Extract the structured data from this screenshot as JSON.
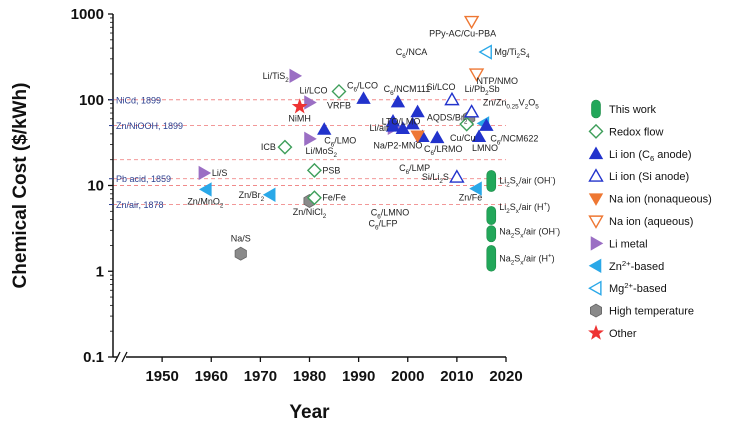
{
  "chart_data": {
    "type": "scatter",
    "xlabel": "Year",
    "ylabel": "Chemical Cost ($/kWh)",
    "xlim": [
      1940,
      2020
    ],
    "ylim": [
      0.1,
      1000
    ],
    "yscale": "log",
    "axis_break": "x-axis between left edge and 1950",
    "x_ticks": [
      {
        "value": 1950,
        "label": "1950"
      },
      {
        "value": 1960,
        "label": "1960"
      },
      {
        "value": 1970,
        "label": "1970"
      },
      {
        "value": 1980,
        "label": "1980"
      },
      {
        "value": 1990,
        "label": "1990"
      },
      {
        "value": 2000,
        "label": "2000"
      },
      {
        "value": 2010,
        "label": "2010"
      },
      {
        "value": 2020,
        "label": "2020"
      }
    ],
    "y_ticks": [
      {
        "value": 0.1,
        "label": "0.1"
      },
      {
        "value": 1,
        "label": "1"
      },
      {
        "value": 10,
        "label": "10"
      },
      {
        "value": 100,
        "label": "100"
      },
      {
        "value": 1000,
        "label": "1000"
      }
    ],
    "reference_lines": [
      {
        "y": 100,
        "label": "NiCd, 1899"
      },
      {
        "y": 50,
        "label": "Zn/NiOOH, 1899"
      },
      {
        "y": 20,
        "label": ""
      },
      {
        "y": 12,
        "label": "Pb acid, 1859"
      },
      {
        "y": 10,
        "label": ""
      },
      {
        "y": 6,
        "label": "Zn/air, 1878"
      }
    ],
    "legend": [
      {
        "key": "this_work",
        "label": "This work",
        "marker": "pill",
        "color": "#22a75a"
      },
      {
        "key": "redox",
        "label": "Redox flow",
        "marker": "diamond",
        "color": "#3e9e5a"
      },
      {
        "key": "li_c6",
        "label": "Li ion (C6 anode)",
        "marker": "triangle-up",
        "color": "#2233cc",
        "filled": true
      },
      {
        "key": "li_si",
        "label": "Li ion (Si anode)",
        "marker": "triangle-up",
        "color": "#2233cc",
        "filled": false
      },
      {
        "key": "na_nonaq",
        "label": "Na ion (nonaqueous)",
        "marker": "triangle-down",
        "color": "#ee7733",
        "filled": true
      },
      {
        "key": "na_aq",
        "label": "Na ion (aqueous)",
        "marker": "triangle-down",
        "color": "#ee7733",
        "filled": false
      },
      {
        "key": "li_metal",
        "label": "Li metal",
        "marker": "triangle-right",
        "color": "#9b6fc4",
        "filled": true
      },
      {
        "key": "zn",
        "label": "Zn2+-based",
        "marker": "triangle-left",
        "color": "#2aa8e8",
        "filled": true
      },
      {
        "key": "mg",
        "label": "Mg2+-based",
        "marker": "triangle-left",
        "color": "#2aa8e8",
        "filled": false
      },
      {
        "key": "hightemp",
        "label": "High temperature",
        "marker": "hexagon",
        "color": "#888888",
        "filled": true
      },
      {
        "key": "other",
        "label": "Other",
        "marker": "star",
        "color": "#ee3333",
        "filled": true
      }
    ],
    "points": [
      {
        "name": "Na/S",
        "category": "hightemp",
        "x": 1966,
        "y": 1.6
      },
      {
        "name": "Zn/NiCl2",
        "category": "hightemp",
        "x": 1980,
        "y": 6.6
      },
      {
        "name": "AQDS/Br2",
        "category": "hightemp",
        "x": 2012.5,
        "y": 62
      },
      {
        "name": "Zn/MnO2",
        "category": "zn",
        "x": 1959,
        "y": 9
      },
      {
        "name": "Zn/Br2",
        "category": "zn",
        "x": 1972,
        "y": 7.8
      },
      {
        "name": "Zn/Fe",
        "category": "zn",
        "x": 2014,
        "y": 9.2
      },
      {
        "name": "Zn/Zn0.25V2O5",
        "category": "zn",
        "x": 2015.5,
        "y": 53
      },
      {
        "name": "Mg/Ti2S4",
        "category": "mg",
        "x": 2016,
        "y": 360
      },
      {
        "name": "Li/S",
        "category": "li_metal",
        "x": 1958.5,
        "y": 14
      },
      {
        "name": "Li/TiS2",
        "category": "li_metal",
        "x": 1977,
        "y": 190
      },
      {
        "name": "Li/LCO",
        "category": "li_metal",
        "x": 1980,
        "y": 93
      },
      {
        "name": "Li/MoS2",
        "category": "li_metal",
        "x": 1980,
        "y": 35
      },
      {
        "name": "Li/air",
        "category": "li_metal",
        "x": 1997,
        "y": 47
      },
      {
        "name": "NiMH",
        "category": "other",
        "x": 1978,
        "y": 83
      },
      {
        "name": "ICB",
        "category": "redox",
        "x": 1975,
        "y": 28
      },
      {
        "name": "PSB",
        "category": "redox",
        "x": 1981,
        "y": 15
      },
      {
        "name": "VRFB",
        "category": "redox",
        "x": 1986,
        "y": 125
      },
      {
        "name": "Fe/Fe",
        "category": "redox",
        "x": 1981,
        "y": 7.2
      },
      {
        "name": "Cu/Cu",
        "category": "redox",
        "x": 2012,
        "y": 52
      },
      {
        "name": "C6/LMO",
        "category": "li_c6",
        "x": 1983,
        "y": 45
      },
      {
        "name": "C6/LCO",
        "category": "li_c6",
        "x": 1991,
        "y": 103
      },
      {
        "name": "C6/NCM111",
        "category": "li_c6",
        "x": 1998,
        "y": 94
      },
      {
        "name": "LTO/LMO",
        "category": "li_c6",
        "x": 1997,
        "y": 56
      },
      {
        "name": "C6/NCA",
        "category": "li_c6",
        "x": 2002,
        "y": 72
      },
      {
        "name": "Na/P2-MNO",
        "category": "li_c6",
        "x": 1999,
        "y": 46
      },
      {
        "name": "C6/LMP",
        "category": "li_c6",
        "x": 2001,
        "y": 52
      },
      {
        "name": "C6/LFP",
        "category": "li_c6",
        "x": 1997,
        "y": 49
      },
      {
        "name": "C6/LMNO",
        "category": "li_c6",
        "x": 2003,
        "y": 37
      },
      {
        "name": "C6/LRMO",
        "category": "li_c6",
        "x": 2006,
        "y": 36
      },
      {
        "name": "LMNO",
        "category": "li_c6",
        "x": 2014.5,
        "y": 37
      },
      {
        "name": "C6/NCM622",
        "category": "li_c6",
        "x": 2016,
        "y": 50
      },
      {
        "name": "Si/LCO",
        "category": "li_si",
        "x": 2009,
        "y": 100
      },
      {
        "name": "Si/Li2S",
        "category": "li_si",
        "x": 2010,
        "y": 12.5
      },
      {
        "name": "Li/Pb2Sb",
        "category": "li_si",
        "x": 2013,
        "y": 72
      },
      {
        "name": "C6/LMP",
        "category": "na_nonaq",
        "x": 2002,
        "y": 38
      },
      {
        "name": "PPy-AC/Cu-PBA",
        "category": "na_aq",
        "x": 2013,
        "y": 820
      },
      {
        "name": "NTP/NMO",
        "category": "na_aq",
        "x": 2014,
        "y": 200
      },
      {
        "name": "Li2Sx/air (OH-)",
        "category": "this_work",
        "x": 2017,
        "y": 11.5,
        "y_range": [
          8.5,
          15
        ]
      },
      {
        "name": "Li2Sx/air (H+)",
        "category": "this_work",
        "x": 2017,
        "y": 4.5,
        "y_range": [
          3.5,
          5.7
        ]
      },
      {
        "name": "Na2Sx/air (OH-)",
        "category": "this_work",
        "x": 2017,
        "y": 2.9,
        "y_range": [
          2.2,
          3.4
        ]
      },
      {
        "name": "Na2Sx/air (H+)",
        "category": "this_work",
        "x": 2017,
        "y": 1.4,
        "y_range": [
          1.0,
          2.0
        ]
      }
    ]
  },
  "labels": {
    "y_axis_title": "Chemical Cost ($/kWh)",
    "x_axis_title": "Year",
    "legend": {
      "this_work": "This work",
      "redox": "Redox flow",
      "li_c6": [
        "Li ion (C",
        "6",
        " anode)"
      ],
      "li_si": "Li ion (Si anode)",
      "na_nonaq": "Na ion (nonaqueous)",
      "na_aq": "Na ion (aqueous)",
      "li_metal": "Li metal",
      "zn": [
        "Zn",
        "2+",
        "-based"
      ],
      "mg": [
        "Mg",
        "2+",
        "-based"
      ],
      "hightemp": "High temperature",
      "other": "Other"
    },
    "ref": {
      "nicd": "NiCd, 1899",
      "znniooh": "Zn/NiOOH, 1899",
      "pbacid": "Pb acid, 1859",
      "znair": "Zn/air, 1878"
    },
    "points": {
      "na_s": "Na/S",
      "zn_nicl2": [
        "Zn/NiCl",
        "2"
      ],
      "zn_mno2": [
        "Zn/MnO",
        "2"
      ],
      "zn_br2": [
        "Zn/Br",
        "2"
      ],
      "li_s": "Li/S",
      "li_tis2": [
        "Li/TiS",
        "2"
      ],
      "li_lco": "Li/LCO",
      "nimh": "NiMH",
      "icb": "ICB",
      "li_mos2": [
        "Li/MoS",
        "2"
      ],
      "psb": "PSB",
      "fe_fe": "Fe/Fe",
      "vrfb": "VRFB",
      "c6_lco": [
        "C",
        "6",
        "/LCO"
      ],
      "c6_lmo": [
        "C",
        "6",
        "/LMO"
      ],
      "c6_nca": [
        "C",
        "6",
        "/NCA"
      ],
      "c6_ncm111": [
        "C",
        "6",
        "/NCM111"
      ],
      "lto_lmo": "LTO/LMO",
      "li_air": "Li/air",
      "na_p2_mno": "Na/P2-MNO",
      "c6_lmp": [
        "C",
        "6",
        "/LMP"
      ],
      "c6_lrmo": [
        "C",
        "6",
        "/LRMO"
      ],
      "c6_lmno": [
        "C",
        "6",
        "/LMNO"
      ],
      "c6_lfp": [
        "C",
        "6",
        "/LFP"
      ],
      "si_lco": "Si/LCO",
      "si_li2s": [
        "Si/Li",
        "2",
        "S"
      ],
      "li_pb2sb": [
        "Li/Pb",
        "2",
        "Sb"
      ],
      "aqds_br2": [
        "AQDS/Br",
        "2"
      ],
      "zn_znv2o5": [
        "Zn/Zn",
        "0.25",
        "V",
        "2",
        "O",
        "5"
      ],
      "cu_cu": "Cu/Cu",
      "lmno": "LMNO",
      "c6_ncm622": [
        "C",
        "6",
        "/NCM622"
      ],
      "zn_fe": "Zn/Fe",
      "ppy": "PPy-AC/Cu-PBA",
      "mg_ti2s4": [
        "Mg/Ti",
        "2",
        "S",
        "4"
      ],
      "ntp_nmo": "NTP/NMO",
      "li2sx_oh": [
        "Li",
        "2",
        "S",
        "x",
        "/air (OH",
        "-",
        ")"
      ],
      "li2sx_h": [
        "Li",
        "2",
        "S",
        "x",
        "/air (H",
        "+",
        ")"
      ],
      "na2sx_oh": [
        "Na",
        "2",
        "S",
        "x",
        "/air (OH",
        "-",
        ")"
      ],
      "na2sx_h": [
        "Na",
        "2",
        "S",
        "x",
        "/air (H",
        "+",
        ")"
      ]
    }
  }
}
